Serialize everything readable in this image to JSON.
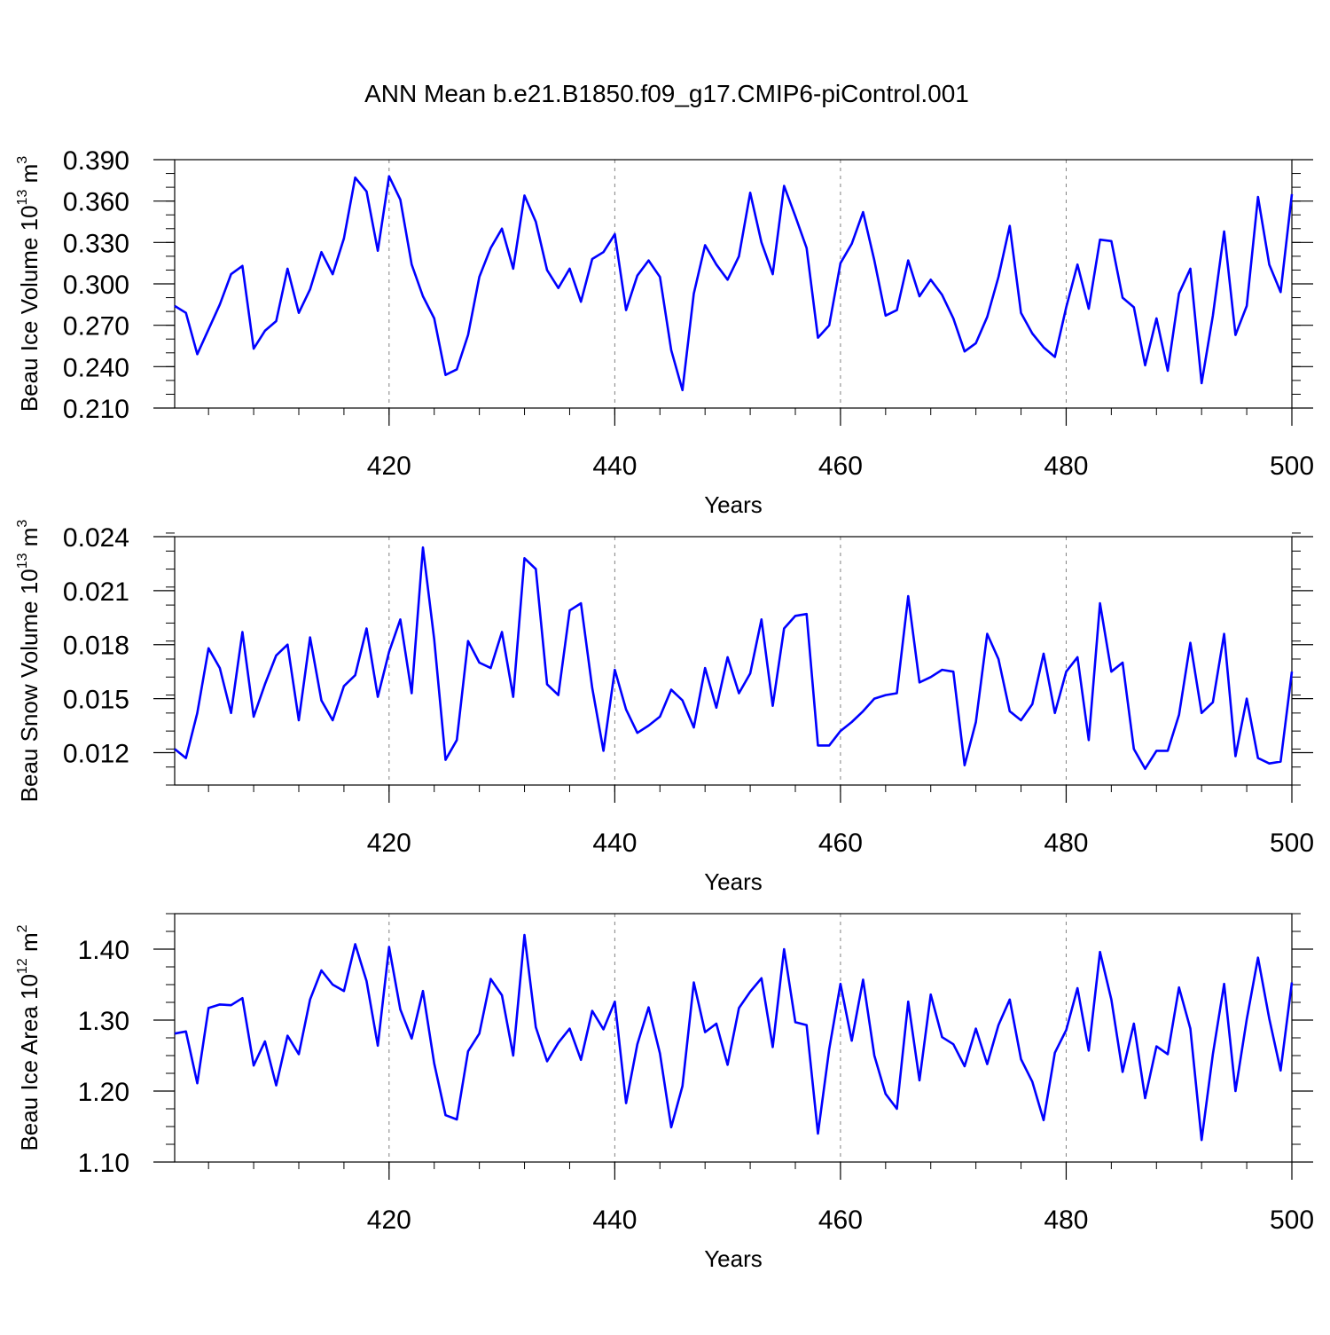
{
  "title": "ANN Mean b.e21.B1850.f09_g17.CMIP6-piControl.001",
  "colors": {
    "series": "#0000ff",
    "axis": "#000000",
    "grid": "#808080"
  },
  "chart_data": [
    {
      "type": "line",
      "ylabel_main": "Beau Ice Volume 10",
      "ylabel_exp": "13",
      "ylabel_unit": " m",
      "ylabel_unit_exp": "3",
      "xlabel": "Years",
      "xlim": [
        401,
        500
      ],
      "ylim": [
        0.21,
        0.39
      ],
      "yticks": [
        0.21,
        0.24,
        0.27,
        0.3,
        0.33,
        0.36,
        0.39
      ],
      "ytick_labels": [
        "0.210",
        "0.240",
        "0.270",
        "0.300",
        "0.330",
        "0.360",
        "0.390"
      ],
      "yminor_step": 0.01,
      "xticks": [
        420,
        440,
        460,
        480,
        500
      ],
      "xtick_labels": [
        "420",
        "440",
        "460",
        "480",
        "500"
      ],
      "xminor_step": 4,
      "grid_x": [
        420,
        440,
        460,
        480
      ],
      "x_start": 401,
      "values": [
        0.284,
        0.279,
        0.249,
        0.267,
        0.285,
        0.307,
        0.313,
        0.253,
        0.266,
        0.273,
        0.311,
        0.279,
        0.296,
        0.323,
        0.307,
        0.333,
        0.377,
        0.367,
        0.324,
        0.378,
        0.361,
        0.314,
        0.291,
        0.275,
        0.234,
        0.238,
        0.263,
        0.305,
        0.326,
        0.34,
        0.311,
        0.364,
        0.345,
        0.31,
        0.297,
        0.311,
        0.287,
        0.318,
        0.323,
        0.336,
        0.281,
        0.306,
        0.317,
        0.305,
        0.252,
        0.223,
        0.293,
        0.328,
        0.314,
        0.303,
        0.32,
        0.366,
        0.33,
        0.307,
        0.371,
        0.349,
        0.326,
        0.261,
        0.27,
        0.315,
        0.329,
        0.352,
        0.317,
        0.277,
        0.281,
        0.317,
        0.291,
        0.303,
        0.292,
        0.275,
        0.251,
        0.257,
        0.276,
        0.305,
        0.342,
        0.279,
        0.264,
        0.254,
        0.247,
        0.283,
        0.314,
        0.282,
        0.332,
        0.331,
        0.29,
        0.283,
        0.241,
        0.275,
        0.237,
        0.293,
        0.311,
        0.228,
        0.277,
        0.338,
        0.263,
        0.284,
        0.363,
        0.314,
        0.294,
        0.365
      ]
    },
    {
      "type": "line",
      "ylabel_main": "Beau Snow Volume 10",
      "ylabel_exp": "13",
      "ylabel_unit": " m",
      "ylabel_unit_exp": "3",
      "xlabel": "Years",
      "xlim": [
        401,
        500
      ],
      "ylim": [
        0.0102,
        0.024
      ],
      "yticks": [
        0.012,
        0.015,
        0.018,
        0.021,
        0.024
      ],
      "ytick_labels": [
        "0.012",
        "0.015",
        "0.018",
        "0.021",
        "0.024"
      ],
      "yminor_step": 0.001,
      "xticks": [
        420,
        440,
        460,
        480,
        500
      ],
      "xtick_labels": [
        "420",
        "440",
        "460",
        "480",
        "500"
      ],
      "xminor_step": 4,
      "grid_x": [
        420,
        440,
        460,
        480
      ],
      "x_start": 401,
      "values": [
        0.0122,
        0.0117,
        0.0142,
        0.0178,
        0.0167,
        0.0142,
        0.0187,
        0.014,
        0.0158,
        0.0174,
        0.018,
        0.0138,
        0.0184,
        0.0149,
        0.0138,
        0.0157,
        0.0163,
        0.0189,
        0.0151,
        0.0176,
        0.0194,
        0.0153,
        0.0234,
        0.0183,
        0.0116,
        0.0127,
        0.0182,
        0.017,
        0.0167,
        0.0187,
        0.0151,
        0.0228,
        0.0222,
        0.0158,
        0.0152,
        0.0199,
        0.0203,
        0.0156,
        0.0121,
        0.0166,
        0.0144,
        0.0131,
        0.0135,
        0.014,
        0.0155,
        0.0149,
        0.0134,
        0.0167,
        0.0145,
        0.0173,
        0.0153,
        0.0164,
        0.0194,
        0.0146,
        0.0189,
        0.0196,
        0.0197,
        0.0124,
        0.0124,
        0.0132,
        0.0137,
        0.0143,
        0.015,
        0.0152,
        0.0153,
        0.0207,
        0.0159,
        0.0162,
        0.0166,
        0.0165,
        0.0113,
        0.0137,
        0.0186,
        0.0172,
        0.0143,
        0.0138,
        0.0147,
        0.0175,
        0.0142,
        0.0165,
        0.0173,
        0.0127,
        0.0203,
        0.0165,
        0.017,
        0.0122,
        0.0111,
        0.0121,
        0.0121,
        0.0141,
        0.0181,
        0.0142,
        0.0148,
        0.0186,
        0.0118,
        0.015,
        0.0117,
        0.0114,
        0.0115,
        0.0165
      ]
    },
    {
      "type": "line",
      "ylabel_main": "Beau Ice Area 10",
      "ylabel_exp": "12",
      "ylabel_unit": " m",
      "ylabel_unit_exp": "2",
      "xlabel": "Years",
      "xlim": [
        401,
        500
      ],
      "ylim": [
        1.1,
        1.45
      ],
      "yticks": [
        1.1,
        1.2,
        1.3,
        1.4
      ],
      "ytick_labels": [
        "1.10",
        "1.20",
        "1.30",
        "1.40"
      ],
      "yminor_step": 0.025,
      "xticks": [
        420,
        440,
        460,
        480,
        500
      ],
      "xtick_labels": [
        "420",
        "440",
        "460",
        "480",
        "500"
      ],
      "xminor_step": 4,
      "grid_x": [
        420,
        440,
        460,
        480
      ],
      "x_start": 401,
      "values": [
        1.281,
        1.284,
        1.211,
        1.317,
        1.322,
        1.321,
        1.331,
        1.236,
        1.27,
        1.208,
        1.278,
        1.252,
        1.329,
        1.37,
        1.35,
        1.341,
        1.407,
        1.355,
        1.264,
        1.403,
        1.315,
        1.274,
        1.341,
        1.239,
        1.166,
        1.16,
        1.256,
        1.281,
        1.358,
        1.335,
        1.25,
        1.42,
        1.29,
        1.242,
        1.268,
        1.288,
        1.244,
        1.313,
        1.287,
        1.326,
        1.183,
        1.266,
        1.318,
        1.253,
        1.149,
        1.207,
        1.353,
        1.283,
        1.295,
        1.237,
        1.317,
        1.34,
        1.359,
        1.262,
        1.4,
        1.297,
        1.293,
        1.14,
        1.259,
        1.351,
        1.271,
        1.357,
        1.25,
        1.196,
        1.175,
        1.326,
        1.215,
        1.336,
        1.276,
        1.266,
        1.235,
        1.288,
        1.238,
        1.293,
        1.329,
        1.245,
        1.213,
        1.159,
        1.254,
        1.286,
        1.345,
        1.257,
        1.396,
        1.329,
        1.227,
        1.295,
        1.19,
        1.263,
        1.252,
        1.346,
        1.288,
        1.131,
        1.252,
        1.351,
        1.2,
        1.301,
        1.388,
        1.302,
        1.229,
        1.353
      ]
    }
  ]
}
